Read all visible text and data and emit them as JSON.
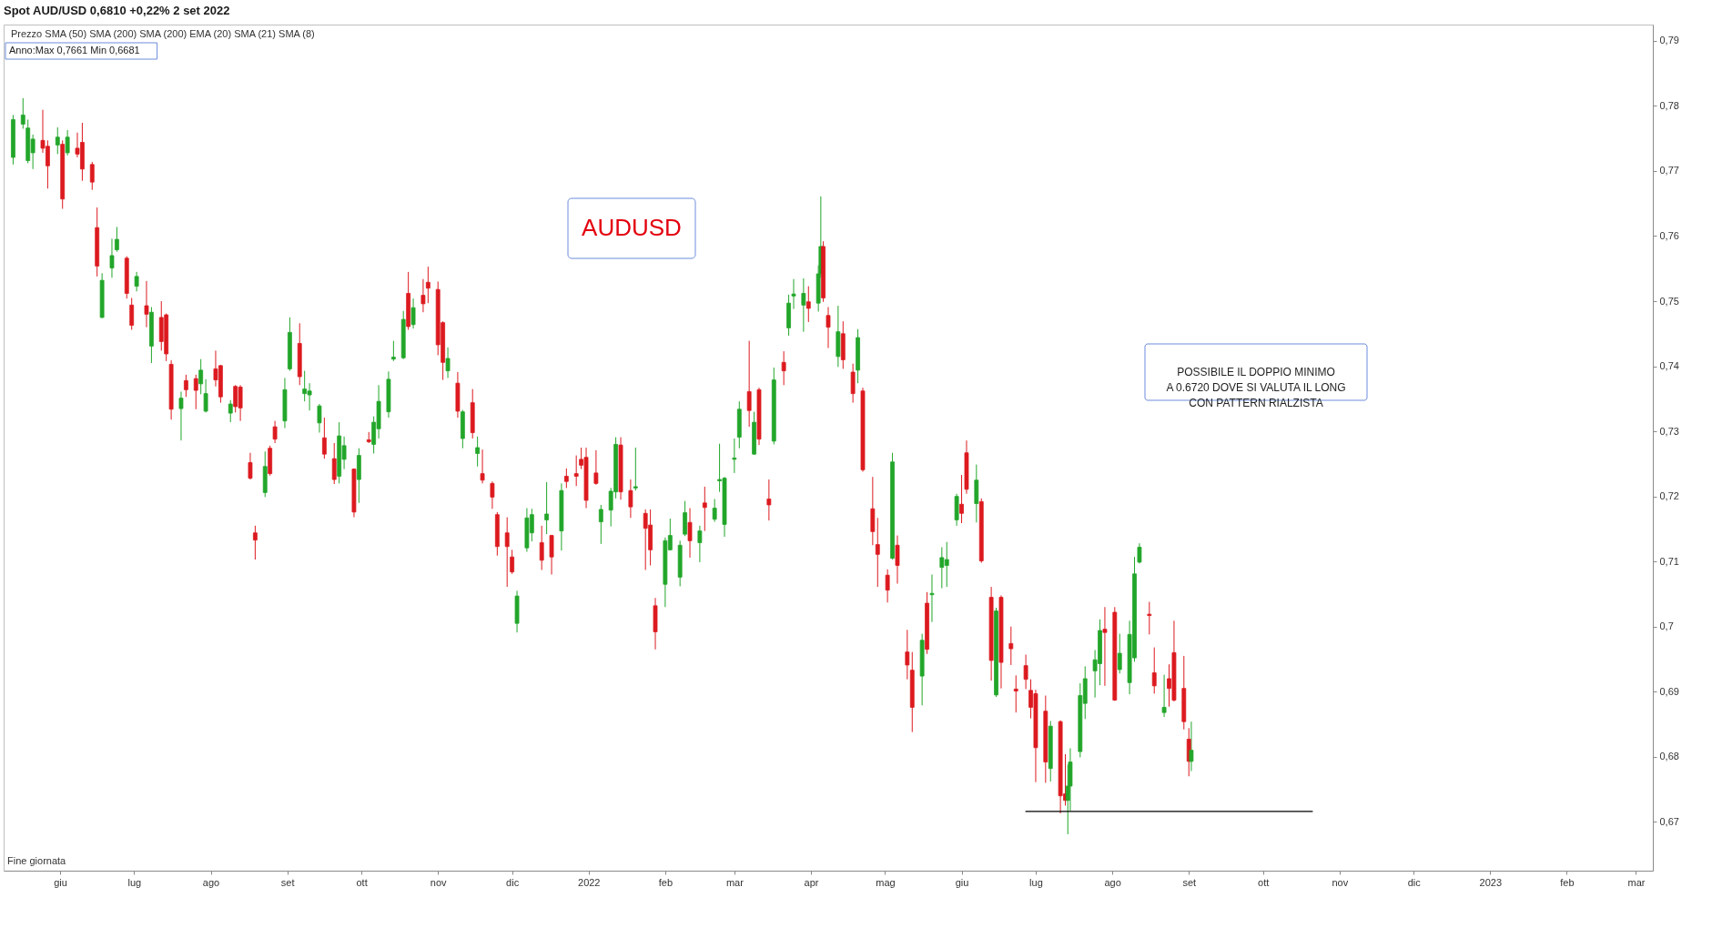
{
  "chart_data": {
    "type": "candlestick",
    "title": "AUDUSD",
    "subtitle": "Spot AUD/USD 0,6810 +0,22% 2 set 2022",
    "annotations": [
      "Prezzo  SMA (50)  SMA (200)  SMA (200)  EMA (20)  SMA (21)  SMA (8)",
      "Anno:Max 0,7661 Min 0,6681",
      "POSSIBILE IL DOPPIO MINIMO\nA 0.6720 DOVE SI VALUTA IL LONG\nCON PATTERN RIALZISTA",
      "Fine giornata"
    ],
    "x": [
      "2021-05-13",
      "2021-05-17",
      "2021-05-19",
      "2021-05-21",
      "2021-05-25",
      "2021-05-27",
      "2021-05-31",
      "2021-06-02",
      "2021-06-04",
      "2021-06-08",
      "2021-06-10",
      "2021-06-14",
      "2021-06-16",
      "2021-06-18",
      "2021-06-22",
      "2021-06-24",
      "2021-06-28",
      "2021-06-30",
      "2021-07-02",
      "2021-07-06",
      "2021-07-08",
      "2021-07-12",
      "2021-07-14",
      "2021-07-16",
      "2021-07-20",
      "2021-07-22",
      "2021-07-26",
      "2021-07-28",
      "2021-07-30",
      "2021-08-03",
      "2021-08-05",
      "2021-08-09",
      "2021-08-11",
      "2021-08-13",
      "2021-08-17",
      "2021-08-19",
      "2021-08-23",
      "2021-08-25",
      "2021-08-27",
      "2021-08-31",
      "2021-09-02",
      "2021-09-06",
      "2021-09-08",
      "2021-09-10",
      "2021-09-14",
      "2021-09-16",
      "2021-09-20",
      "2021-09-22",
      "2021-09-24",
      "2021-09-28",
      "2021-09-30",
      "2021-10-04",
      "2021-10-06",
      "2021-10-08",
      "2021-10-12",
      "2021-10-14",
      "2021-10-18",
      "2021-10-20",
      "2021-10-22",
      "2021-10-26",
      "2021-10-28",
      "2021-11-01",
      "2021-11-03",
      "2021-11-05",
      "2021-11-09",
      "2021-11-11",
      "2021-11-15",
      "2021-11-17",
      "2021-11-19",
      "2021-11-23",
      "2021-11-25",
      "2021-11-29",
      "2021-12-01",
      "2021-12-03",
      "2021-12-07",
      "2021-12-09",
      "2021-12-13",
      "2021-12-15",
      "2021-12-17",
      "2021-12-21",
      "2021-12-23",
      "2021-12-27",
      "2021-12-29",
      "2021-12-31",
      "2022-01-04",
      "2022-01-06",
      "2022-01-10",
      "2022-01-12",
      "2022-01-14",
      "2022-01-18",
      "2022-01-20",
      "2022-01-24",
      "2022-01-26",
      "2022-01-28",
      "2022-02-01",
      "2022-02-03",
      "2022-02-07",
      "2022-02-09",
      "2022-02-11",
      "2022-02-15",
      "2022-02-17",
      "2022-02-21",
      "2022-02-23",
      "2022-02-25",
      "2022-03-01",
      "2022-03-03",
      "2022-03-07",
      "2022-03-09",
      "2022-03-11",
      "2022-03-15",
      "2022-03-17",
      "2022-03-21",
      "2022-03-23",
      "2022-03-25",
      "2022-03-29",
      "2022-03-31",
      "2022-04-04",
      "2022-04-05",
      "2022-04-06",
      "2022-04-08",
      "2022-04-12",
      "2022-04-14",
      "2022-04-18",
      "2022-04-20",
      "2022-04-22",
      "2022-04-26",
      "2022-04-28",
      "2022-05-02",
      "2022-05-04",
      "2022-05-06",
      "2022-05-10",
      "2022-05-12",
      "2022-05-16",
      "2022-05-18",
      "2022-05-20",
      "2022-05-24",
      "2022-05-26",
      "2022-05-30",
      "2022-06-01",
      "2022-06-03",
      "2022-06-07",
      "2022-06-09",
      "2022-06-13",
      "2022-06-15",
      "2022-06-17",
      "2022-06-21",
      "2022-06-23",
      "2022-06-27",
      "2022-06-29",
      "2022-07-01",
      "2022-07-05",
      "2022-07-07",
      "2022-07-11",
      "2022-07-13",
      "2022-07-14",
      "2022-07-15",
      "2022-07-19",
      "2022-07-21",
      "2022-07-25",
      "2022-07-27",
      "2022-07-29",
      "2022-08-02",
      "2022-08-04",
      "2022-08-08",
      "2022-08-10",
      "2022-08-12",
      "2022-08-16",
      "2022-08-18",
      "2022-08-22",
      "2022-08-24",
      "2022-08-26",
      "2022-08-30",
      "2022-09-01",
      "2022-09-02"
    ],
    "ohlc": [
      [
        0.7721,
        0.7786,
        0.771,
        0.7779
      ],
      [
        0.7772,
        0.7812,
        0.7765,
        0.7786
      ],
      [
        0.7716,
        0.7779,
        0.7712,
        0.7766
      ],
      [
        0.7728,
        0.7756,
        0.7703,
        0.7749
      ],
      [
        0.7747,
        0.7794,
        0.7728,
        0.7735
      ],
      [
        0.7738,
        0.7747,
        0.7673,
        0.7708
      ],
      [
        0.774,
        0.7767,
        0.7726,
        0.7752
      ],
      [
        0.7741,
        0.7747,
        0.7642,
        0.7657
      ],
      [
        0.7728,
        0.7763,
        0.7724,
        0.7752
      ],
      [
        0.7735,
        0.7759,
        0.7721,
        0.7726
      ],
      [
        0.7744,
        0.7774,
        0.7685,
        0.7703
      ],
      [
        0.771,
        0.7714,
        0.7671,
        0.7683
      ],
      [
        0.7613,
        0.7644,
        0.7538,
        0.7554
      ],
      [
        0.7475,
        0.7543,
        0.7474,
        0.7532
      ],
      [
        0.7551,
        0.7596,
        0.7536,
        0.757
      ],
      [
        0.7579,
        0.7614,
        0.7576,
        0.7595
      ],
      [
        0.7566,
        0.7569,
        0.7504,
        0.7512
      ],
      [
        0.7494,
        0.7505,
        0.7456,
        0.7463
      ],
      [
        0.7523,
        0.7545,
        0.7515,
        0.7538
      ],
      [
        0.7493,
        0.7531,
        0.746,
        0.748
      ],
      [
        0.7431,
        0.7491,
        0.7405,
        0.7483
      ],
      [
        0.7475,
        0.75,
        0.7424,
        0.7438
      ],
      [
        0.7479,
        0.7481,
        0.7408,
        0.7419
      ],
      [
        0.7403,
        0.7409,
        0.7318,
        0.7334
      ],
      [
        0.7335,
        0.7361,
        0.7286,
        0.7351
      ],
      [
        0.7378,
        0.7387,
        0.7353,
        0.7364
      ],
      [
        0.7381,
        0.7387,
        0.7334,
        0.7363
      ],
      [
        0.7373,
        0.7411,
        0.7357,
        0.7394
      ],
      [
        0.7331,
        0.738,
        0.7329,
        0.7358
      ],
      [
        0.7396,
        0.7424,
        0.7369,
        0.7379
      ],
      [
        0.7401,
        0.7402,
        0.7344,
        0.7353
      ],
      [
        0.7328,
        0.7348,
        0.7314,
        0.7342
      ],
      [
        0.7369,
        0.7371,
        0.7329,
        0.7338
      ],
      [
        0.7368,
        0.7371,
        0.7316,
        0.7336
      ],
      [
        0.7252,
        0.7267,
        0.7226,
        0.7228
      ],
      [
        0.7144,
        0.7155,
        0.7103,
        0.7133
      ],
      [
        0.7206,
        0.7269,
        0.7199,
        0.7246
      ],
      [
        0.7274,
        0.7278,
        0.7232,
        0.7235
      ],
      [
        0.7307,
        0.7316,
        0.7282,
        0.7288
      ],
      [
        0.7316,
        0.7382,
        0.7305,
        0.7364
      ],
      [
        0.7396,
        0.7475,
        0.7393,
        0.7452
      ],
      [
        0.7435,
        0.7466,
        0.7371,
        0.7384
      ],
      [
        0.7358,
        0.7393,
        0.7346,
        0.7365
      ],
      [
        0.7356,
        0.7374,
        0.7332,
        0.7362
      ],
      [
        0.7313,
        0.7342,
        0.7298,
        0.7339
      ],
      [
        0.729,
        0.7321,
        0.7258,
        0.7265
      ],
      [
        0.7258,
        0.7282,
        0.7219,
        0.7226
      ],
      [
        0.7231,
        0.7314,
        0.722,
        0.7293
      ],
      [
        0.7257,
        0.7292,
        0.7242,
        0.7278
      ],
      [
        0.7242,
        0.7243,
        0.7168,
        0.7176
      ],
      [
        0.7226,
        0.7274,
        0.719,
        0.7263
      ],
      [
        0.7287,
        0.7299,
        0.7282,
        0.7284
      ],
      [
        0.728,
        0.7323,
        0.7266,
        0.7314
      ],
      [
        0.7304,
        0.7371,
        0.7289,
        0.7346
      ],
      [
        0.733,
        0.7392,
        0.7321,
        0.738
      ],
      [
        0.7411,
        0.7439,
        0.7408,
        0.7414
      ],
      [
        0.7413,
        0.7485,
        0.7411,
        0.7472
      ],
      [
        0.7512,
        0.7545,
        0.7456,
        0.7461
      ],
      [
        0.7464,
        0.7504,
        0.7458,
        0.749
      ],
      [
        0.7509,
        0.7534,
        0.7483,
        0.7496
      ],
      [
        0.7529,
        0.7553,
        0.7497,
        0.752
      ],
      [
        0.7518,
        0.753,
        0.7417,
        0.7433
      ],
      [
        0.7467,
        0.7469,
        0.7379,
        0.7406
      ],
      [
        0.7393,
        0.7429,
        0.7382,
        0.7412
      ],
      [
        0.7374,
        0.7391,
        0.7321,
        0.7331
      ],
      [
        0.7289,
        0.7333,
        0.7274,
        0.733
      ],
      [
        0.7344,
        0.7365,
        0.7289,
        0.7298
      ],
      [
        0.7266,
        0.7292,
        0.7246,
        0.7275
      ],
      [
        0.7235,
        0.7272,
        0.722,
        0.7225
      ],
      [
        0.722,
        0.7223,
        0.7181,
        0.7199
      ],
      [
        0.7172,
        0.7176,
        0.7109,
        0.7123
      ],
      [
        0.7144,
        0.7168,
        0.7061,
        0.7123
      ],
      [
        0.7107,
        0.7118,
        0.7081,
        0.7084
      ],
      [
        0.7005,
        0.7055,
        0.6991,
        0.7047
      ],
      [
        0.7121,
        0.7182,
        0.7115,
        0.7167
      ],
      [
        0.7144,
        0.7181,
        0.7131,
        0.7172
      ],
      [
        0.7129,
        0.7155,
        0.7087,
        0.7102
      ],
      [
        0.7164,
        0.7222,
        0.7142,
        0.7173
      ],
      [
        0.714,
        0.7141,
        0.708,
        0.7107
      ],
      [
        0.7147,
        0.722,
        0.7117,
        0.7209
      ],
      [
        0.7231,
        0.7243,
        0.7213,
        0.7223
      ],
      [
        0.7235,
        0.7263,
        0.7216,
        0.7231
      ],
      [
        0.7257,
        0.7275,
        0.7242,
        0.7248
      ],
      [
        0.726,
        0.7275,
        0.7182,
        0.7194
      ],
      [
        0.7236,
        0.7271,
        0.7218,
        0.722
      ],
      [
        0.7161,
        0.7187,
        0.7127,
        0.718
      ],
      [
        0.7179,
        0.7213,
        0.7154,
        0.7208
      ],
      [
        0.7207,
        0.7291,
        0.7197,
        0.728
      ],
      [
        0.7279,
        0.7291,
        0.7195,
        0.7207
      ],
      [
        0.7209,
        0.7226,
        0.7167,
        0.7184
      ],
      [
        0.7213,
        0.7275,
        0.7209,
        0.7215
      ],
      [
        0.7174,
        0.718,
        0.7087,
        0.7151
      ],
      [
        0.7156,
        0.718,
        0.7094,
        0.7118
      ],
      [
        0.7032,
        0.7044,
        0.6965,
        0.6992
      ],
      [
        0.7065,
        0.7137,
        0.703,
        0.7132
      ],
      [
        0.7118,
        0.7166,
        0.7117,
        0.714
      ],
      [
        0.7076,
        0.7132,
        0.7062,
        0.7125
      ],
      [
        0.7142,
        0.7193,
        0.7139,
        0.7175
      ],
      [
        0.716,
        0.7182,
        0.7106,
        0.7132
      ],
      [
        0.7129,
        0.7155,
        0.7099,
        0.7147
      ],
      [
        0.719,
        0.7215,
        0.7147,
        0.7183
      ],
      [
        0.7165,
        0.7196,
        0.7161,
        0.7182
      ],
      [
        0.7224,
        0.7281,
        0.7207,
        0.7226
      ],
      [
        0.7157,
        0.723,
        0.7138,
        0.7228
      ],
      [
        0.7257,
        0.7289,
        0.7236,
        0.7259
      ],
      [
        0.7291,
        0.7346,
        0.7274,
        0.7334
      ],
      [
        0.7361,
        0.7439,
        0.7307,
        0.7332
      ],
      [
        0.7265,
        0.733,
        0.7264,
        0.7314
      ],
      [
        0.7364,
        0.7367,
        0.7279,
        0.7288
      ],
      [
        0.7196,
        0.7226,
        0.7163,
        0.7187
      ],
      [
        0.7285,
        0.7398,
        0.728,
        0.7379
      ],
      [
        0.7406,
        0.7423,
        0.7371,
        0.7393
      ],
      [
        0.7459,
        0.751,
        0.7447,
        0.7497
      ],
      [
        0.7508,
        0.7534,
        0.7488,
        0.7511
      ],
      [
        0.7494,
        0.7535,
        0.7453,
        0.7512
      ],
      [
        0.7499,
        0.7523,
        0.7468,
        0.7489
      ],
      [
        0.7497,
        0.7555,
        0.7484,
        0.7542
      ],
      [
        0.7542,
        0.7661,
        0.7536,
        0.7584
      ],
      [
        0.7584,
        0.7592,
        0.7499,
        0.7505
      ],
      [
        0.7478,
        0.7491,
        0.7428,
        0.746
      ],
      [
        0.7415,
        0.7493,
        0.7399,
        0.7453
      ],
      [
        0.745,
        0.7469,
        0.7396,
        0.741
      ],
      [
        0.7391,
        0.7404,
        0.7344,
        0.7358
      ],
      [
        0.7394,
        0.7457,
        0.7374,
        0.7444
      ],
      [
        0.7362,
        0.7367,
        0.7238,
        0.7241
      ],
      [
        0.7181,
        0.723,
        0.7125,
        0.7146
      ],
      [
        0.7126,
        0.7167,
        0.7061,
        0.7111
      ],
      [
        0.7079,
        0.7088,
        0.7037,
        0.7056
      ],
      [
        0.7105,
        0.7267,
        0.7103,
        0.7253
      ],
      [
        0.7125,
        0.714,
        0.7066,
        0.7094
      ],
      [
        0.6961,
        0.6995,
        0.6919,
        0.6941
      ],
      [
        0.6933,
        0.6961,
        0.6838,
        0.6876
      ],
      [
        0.6924,
        0.6989,
        0.6879,
        0.6979
      ],
      [
        0.7036,
        0.7053,
        0.6958,
        0.6965
      ],
      [
        0.7049,
        0.708,
        0.7007,
        0.7051
      ],
      [
        0.7091,
        0.7122,
        0.7059,
        0.7106
      ],
      [
        0.7094,
        0.713,
        0.7061,
        0.7103
      ],
      [
        0.7164,
        0.7204,
        0.7155,
        0.72
      ],
      [
        0.7188,
        0.7233,
        0.7159,
        0.7174
      ],
      [
        0.7267,
        0.7286,
        0.7204,
        0.7211
      ],
      [
        0.7189,
        0.7249,
        0.716,
        0.7225
      ],
      [
        0.7192,
        0.7197,
        0.7098,
        0.7101
      ],
      [
        0.7045,
        0.7061,
        0.6917,
        0.6948
      ],
      [
        0.6895,
        0.7029,
        0.6892,
        0.7024
      ],
      [
        0.7045,
        0.7048,
        0.6905,
        0.6945
      ],
      [
        0.6974,
        0.7,
        0.6941,
        0.6966
      ],
      [
        0.6904,
        0.6925,
        0.6868,
        0.6901
      ],
      [
        0.694,
        0.6957,
        0.6904,
        0.6919
      ],
      [
        0.6902,
        0.6919,
        0.6859,
        0.6876
      ],
      [
        0.6897,
        0.6903,
        0.6761,
        0.6814
      ],
      [
        0.687,
        0.6894,
        0.676,
        0.6792
      ],
      [
        0.6782,
        0.6855,
        0.6762,
        0.6847
      ],
      [
        0.6854,
        0.6856,
        0.6713,
        0.674
      ],
      [
        0.6743,
        0.6804,
        0.6725,
        0.6733
      ],
      [
        0.6733,
        0.6788,
        0.6681,
        0.6755
      ],
      [
        0.6755,
        0.6813,
        0.6717,
        0.6792
      ],
      [
        0.6808,
        0.6913,
        0.6799,
        0.6894
      ],
      [
        0.6882,
        0.6939,
        0.6858,
        0.692
      ],
      [
        0.6932,
        0.6964,
        0.6891,
        0.6949
      ],
      [
        0.6943,
        0.7011,
        0.691,
        0.6994
      ],
      [
        0.6996,
        0.703,
        0.6909,
        0.6991
      ],
      [
        0.7022,
        0.703,
        0.6886,
        0.6887
      ],
      [
        0.6934,
        0.6989,
        0.6928,
        0.6959
      ],
      [
        0.6914,
        0.7009,
        0.6896,
        0.6988
      ],
      [
        0.6952,
        0.7107,
        0.6946,
        0.7081
      ],
      [
        0.7099,
        0.7128,
        0.7097,
        0.7122
      ],
      [
        0.7019,
        0.7038,
        0.6988,
        0.7017
      ],
      [
        0.6929,
        0.6968,
        0.6897,
        0.6909
      ],
      [
        0.6868,
        0.6926,
        0.6861,
        0.6876
      ],
      [
        0.692,
        0.6942,
        0.6877,
        0.6905
      ],
      [
        0.696,
        0.7009,
        0.6885,
        0.6887
      ],
      [
        0.6905,
        0.6955,
        0.6842,
        0.6854
      ],
      [
        0.6827,
        0.6844,
        0.677,
        0.6793
      ],
      [
        0.6793,
        0.6854,
        0.6778,
        0.681
      ]
    ],
    "colors": [
      "#22a62a",
      "#22a62a",
      "#22a62a",
      "#22a62a",
      "#dc1a1f",
      "#dc1a1f",
      "#22a62a",
      "#dc1a1f",
      "#22a62a",
      "#dc1a1f",
      "#dc1a1f",
      "#dc1a1f",
      "#dc1a1f",
      "#22a62a",
      "#22a62a",
      "#22a62a",
      "#dc1a1f",
      "#dc1a1f",
      "#22a62a",
      "#dc1a1f",
      "#22a62a",
      "#dc1a1f",
      "#dc1a1f",
      "#dc1a1f",
      "#22a62a",
      "#dc1a1f",
      "#dc1a1f",
      "#22a62a",
      "#22a62a",
      "#dc1a1f",
      "#dc1a1f",
      "#22a62a",
      "#dc1a1f",
      "#dc1a1f",
      "#dc1a1f",
      "#dc1a1f",
      "#22a62a",
      "#dc1a1f",
      "#dc1a1f",
      "#22a62a",
      "#22a62a",
      "#dc1a1f",
      "#22a62a",
      "#22a62a",
      "#22a62a",
      "#dc1a1f",
      "#dc1a1f",
      "#22a62a",
      "#22a62a",
      "#dc1a1f",
      "#22a62a",
      "#dc1a1f",
      "#22a62a",
      "#22a62a",
      "#22a62a",
      "#22a62a",
      "#22a62a",
      "#dc1a1f",
      "#22a62a",
      "#dc1a1f",
      "#dc1a1f",
      "#dc1a1f",
      "#dc1a1f",
      "#22a62a",
      "#dc1a1f",
      "#22a62a",
      "#dc1a1f",
      "#22a62a",
      "#dc1a1f",
      "#dc1a1f",
      "#dc1a1f",
      "#dc1a1f",
      "#dc1a1f",
      "#22a62a",
      "#22a62a",
      "#22a62a",
      "#dc1a1f",
      "#22a62a",
      "#dc1a1f",
      "#22a62a",
      "#dc1a1f",
      "#dc1a1f",
      "#dc1a1f",
      "#dc1a1f",
      "#dc1a1f",
      "#22a62a",
      "#22a62a",
      "#22a62a",
      "#dc1a1f",
      "#dc1a1f",
      "#22a62a",
      "#dc1a1f",
      "#dc1a1f",
      "#dc1a1f",
      "#22a62a",
      "#22a62a",
      "#22a62a",
      "#22a62a",
      "#dc1a1f",
      "#22a62a",
      "#dc1a1f",
      "#22a62a",
      "#22a62a",
      "#22a62a",
      "#22a62a",
      "#22a62a",
      "#dc1a1f",
      "#22a62a",
      "#dc1a1f",
      "#dc1a1f",
      "#22a62a",
      "#dc1a1f",
      "#22a62a",
      "#22a62a",
      "#22a62a",
      "#dc1a1f",
      "#22a62a",
      "#22a62a",
      "#dc1a1f",
      "#dc1a1f",
      "#22a62a",
      "#dc1a1f",
      "#dc1a1f",
      "#22a62a",
      "#dc1a1f",
      "#dc1a1f",
      "#dc1a1f",
      "#dc1a1f",
      "#22a62a",
      "#dc1a1f",
      "#dc1a1f",
      "#dc1a1f",
      "#22a62a",
      "#dc1a1f",
      "#22a62a",
      "#22a62a",
      "#22a62a",
      "#22a62a",
      "#dc1a1f",
      "#dc1a1f",
      "#22a62a",
      "#dc1a1f",
      "#dc1a1f",
      "#22a62a",
      "#dc1a1f",
      "#dc1a1f",
      "#dc1a1f",
      "#dc1a1f",
      "#dc1a1f",
      "#dc1a1f",
      "#dc1a1f",
      "#22a62a",
      "#dc1a1f",
      "#dc1a1f",
      "#22a62a",
      "#22a62a",
      "#22a62a",
      "#22a62a",
      "#22a62a",
      "#22a62a",
      "#dc1a1f",
      "#dc1a1f",
      "#22a62a",
      "#22a62a",
      "#22a62a",
      "#22a62a",
      "#dc1a1f",
      "#dc1a1f",
      "#22a62a",
      "#dc1a1f",
      "#dc1a1f",
      "#dc1a1f",
      "#dc1a1f",
      "#22a62a"
    ],
    "series": [
      {
        "type": "line",
        "x": [
          "2022-06-27",
          "2022-10-21"
        ],
        "values": [
          0.6716,
          0.6716
        ],
        "color": "#000000"
      }
    ],
    "xlim": [
      "2021-05-11",
      "2023-03-06"
    ],
    "xticks": [
      {
        "value": "2021-06-01",
        "label": "giu"
      },
      {
        "value": "2021-07-01",
        "label": "lug"
      },
      {
        "value": "2021-08-01",
        "label": "ago"
      },
      {
        "value": "2021-09-01",
        "label": "set"
      },
      {
        "value": "2021-10-01",
        "label": "ott"
      },
      {
        "value": "2021-11-01",
        "label": "nov"
      },
      {
        "value": "2021-12-01",
        "label": "dic"
      },
      {
        "value": "2022-01-01",
        "label": "2022"
      },
      {
        "value": "2022-02-01",
        "label": "feb"
      },
      {
        "value": "2022-03-01",
        "label": "mar"
      },
      {
        "value": "2022-04-01",
        "label": "apr"
      },
      {
        "value": "2022-05-01",
        "label": "mag"
      },
      {
        "value": "2022-06-01",
        "label": "giu"
      },
      {
        "value": "2022-07-01",
        "label": "lug"
      },
      {
        "value": "2022-08-01",
        "label": "ago"
      },
      {
        "value": "2022-09-01",
        "label": "set"
      },
      {
        "value": "2022-10-01",
        "label": "ott"
      },
      {
        "value": "2022-11-01",
        "label": "nov"
      },
      {
        "value": "2022-12-01",
        "label": "dic"
      },
      {
        "value": "2023-01-01",
        "label": "2023"
      },
      {
        "value": "2023-02-01",
        "label": "feb"
      },
      {
        "value": "2023-03-01",
        "label": "mar"
      }
    ],
    "ylim": [
      0.6625,
      0.7925
    ],
    "yticks": [
      {
        "value": 0.67,
        "label": "0,67"
      },
      {
        "value": 0.68,
        "label": "0,68"
      },
      {
        "value": 0.69,
        "label": "0,69"
      },
      {
        "value": 0.7,
        "label": "0,7"
      },
      {
        "value": 0.71,
        "label": "0,71"
      },
      {
        "value": 0.72,
        "label": "0,72"
      },
      {
        "value": 0.73,
        "label": "0,73"
      },
      {
        "value": 0.74,
        "label": "0,74"
      },
      {
        "value": 0.75,
        "label": "0,75"
      },
      {
        "value": 0.76,
        "label": "0,76"
      },
      {
        "value": 0.77,
        "label": "0,77"
      },
      {
        "value": 0.78,
        "label": "0,78"
      },
      {
        "value": 0.79,
        "label": "0,79"
      }
    ]
  }
}
